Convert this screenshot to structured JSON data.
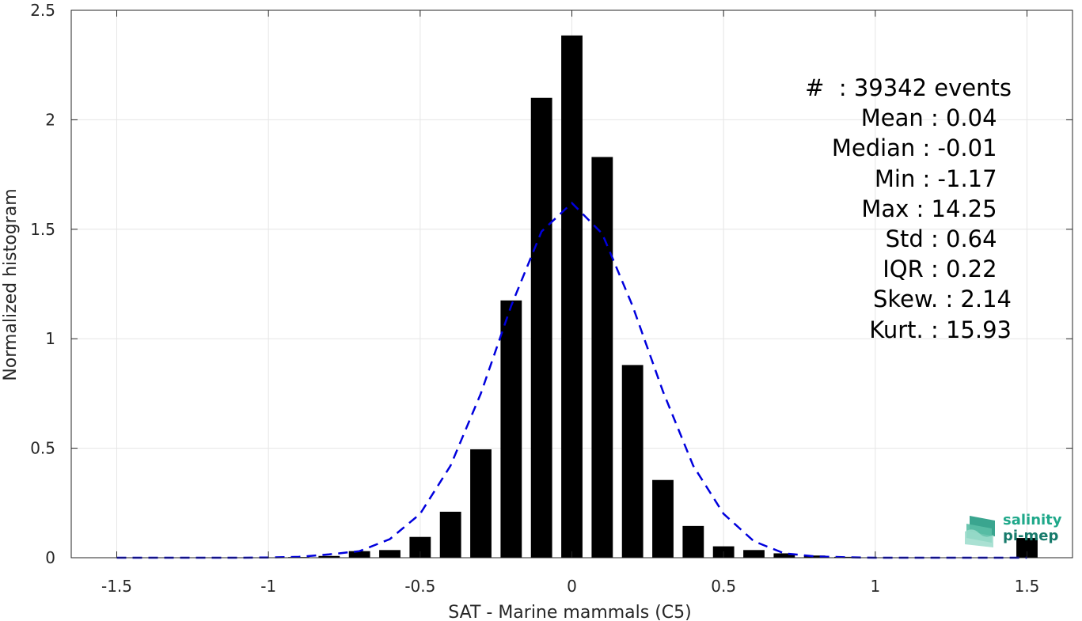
{
  "chart_data": {
    "type": "bar",
    "xlabel": "SAT - Marine mammals (C5)",
    "ylabel": "Normalized histogram",
    "xlim": [
      -1.65,
      1.65
    ],
    "ylim": [
      0,
      2.5
    ],
    "xticks": [
      "-1.5",
      "-1",
      "-0.5",
      "0",
      "0.5",
      "1",
      "1.5"
    ],
    "yticks": [
      "0",
      "0.5",
      "1",
      "1.5",
      "2",
      "2.5"
    ],
    "grid": true,
    "bar_color": "#000000",
    "bar_width": 0.07,
    "bins": [
      {
        "x": -0.9,
        "y": 0.003
      },
      {
        "x": -0.8,
        "y": 0.008
      },
      {
        "x": -0.7,
        "y": 0.03
      },
      {
        "x": -0.6,
        "y": 0.035
      },
      {
        "x": -0.5,
        "y": 0.095
      },
      {
        "x": -0.4,
        "y": 0.21
      },
      {
        "x": -0.3,
        "y": 0.495
      },
      {
        "x": -0.2,
        "y": 1.175
      },
      {
        "x": -0.1,
        "y": 2.1
      },
      {
        "x": 0.0,
        "y": 2.385
      },
      {
        "x": 0.1,
        "y": 1.83
      },
      {
        "x": 0.2,
        "y": 0.88
      },
      {
        "x": 0.3,
        "y": 0.355
      },
      {
        "x": 0.4,
        "y": 0.145
      },
      {
        "x": 0.5,
        "y": 0.052
      },
      {
        "x": 0.6,
        "y": 0.035
      },
      {
        "x": 0.7,
        "y": 0.02
      },
      {
        "x": 0.8,
        "y": 0.01
      },
      {
        "x": 0.9,
        "y": 0.004
      },
      {
        "x": 1.5,
        "y": 0.09
      }
    ],
    "fit_curve": {
      "color": "#0000dd",
      "style": "dashed",
      "x": [
        -1.5,
        -1.4,
        -1.3,
        -1.2,
        -1.1,
        -1.0,
        -0.9,
        -0.8,
        -0.7,
        -0.6,
        -0.5,
        -0.4,
        -0.3,
        -0.2,
        -0.1,
        0.0,
        0.1,
        0.2,
        0.3,
        0.4,
        0.5,
        0.6,
        0.7,
        0.8,
        0.9,
        1.0,
        1.1,
        1.2,
        1.3,
        1.4,
        1.5
      ],
      "y": [
        0,
        0,
        0,
        0,
        0,
        0.001,
        0.004,
        0.015,
        0.03,
        0.085,
        0.2,
        0.42,
        0.75,
        1.15,
        1.49,
        1.62,
        1.48,
        1.15,
        0.76,
        0.42,
        0.2,
        0.075,
        0.02,
        0.006,
        0.002,
        0,
        0,
        0,
        0,
        0,
        0
      ]
    }
  },
  "stats": [
    {
      "label": "#  : 39342 events"
    },
    {
      "label": "Mean : 0.04  "
    },
    {
      "label": "Median : -0.01  "
    },
    {
      "label": "Min : -1.17  "
    },
    {
      "label": "Max : 14.25  "
    },
    {
      "label": "Std : 0.64  "
    },
    {
      "label": "IQR : 0.22  "
    },
    {
      "label": "Skew. : 2.14"
    },
    {
      "label": "Kurt. : 15.93"
    }
  ],
  "logo": {
    "line1": "salinity",
    "line2": "pi-mep",
    "color1": "#1fa88a",
    "color2": "#167a6b"
  },
  "colors": {
    "axis": "#262626",
    "grid": "#e6e6e6"
  }
}
